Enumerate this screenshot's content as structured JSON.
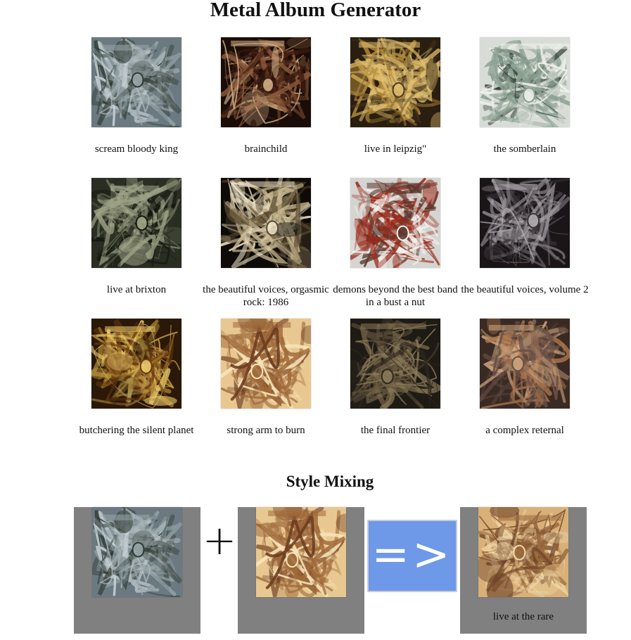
{
  "header": {
    "title": "Metal Album Generator"
  },
  "albums": [
    {
      "name": "scream bloody king",
      "palette": [
        "#6b7a80",
        "#c9d3d8",
        "#2f3a33",
        "#9aa8ab"
      ]
    },
    {
      "name": "brainchild",
      "palette": [
        "#1a0d08",
        "#8a5a3a",
        "#3c1a10",
        "#d9b48a"
      ]
    },
    {
      "name": "live in leipzig\"",
      "palette": [
        "#2a1e10",
        "#b38a3a",
        "#4a3a20",
        "#e0c070"
      ]
    },
    {
      "name": "the somberlain",
      "palette": [
        "#d8dcd6",
        "#2c3a30",
        "#8aa090",
        "#f2f2ee"
      ]
    },
    {
      "name": "live at brixton",
      "palette": [
        "#2a2e22",
        "#6a6e58",
        "#14180f",
        "#a0a488"
      ]
    },
    {
      "name": "the beautiful voices, orgasmic rock: 1986",
      "palette": [
        "#0d0a08",
        "#c8b890",
        "#5a4a30",
        "#f0e6c8"
      ]
    },
    {
      "name": "demons beyond the best band in a bust a nut",
      "palette": [
        "#d4d4d0",
        "#9a2a1a",
        "#f4f4f0",
        "#5a3a30"
      ]
    },
    {
      "name": "the beautiful voices, volume 2",
      "palette": [
        "#1a1618",
        "#7a7478",
        "#3a3438",
        "#b0acb0"
      ]
    },
    {
      "name": "butchering the silent planet",
      "palette": [
        "#2a1808",
        "#c8a040",
        "#6a3a10",
        "#f0d070"
      ]
    },
    {
      "name": "strong arm to burn",
      "palette": [
        "#e8c890",
        "#6a3a20",
        "#f6e4b8",
        "#a06a3a"
      ]
    },
    {
      "name": "the final frontier",
      "palette": [
        "#1e1a14",
        "#6a5a40",
        "#2e2820",
        "#8a7a58"
      ]
    },
    {
      "name": "a complex reternal",
      "palette": [
        "#3a2a24",
        "#b07a50",
        "#6a5048",
        "#d0a880"
      ]
    }
  ],
  "mixing": {
    "title": "Style Mixing",
    "operator_plus": "+",
    "generate_label": "=>",
    "result_name": "live at the rare",
    "source_a_palette": [
      "#6b7a80",
      "#c9d3d8",
      "#2f3a33",
      "#9aa8ab"
    ],
    "source_b_palette": [
      "#e8c890",
      "#6a3a20",
      "#f6e4b8",
      "#a06a3a"
    ],
    "result_palette": [
      "#d8b078",
      "#6a4024",
      "#f0d8a8",
      "#9a6a40"
    ]
  }
}
